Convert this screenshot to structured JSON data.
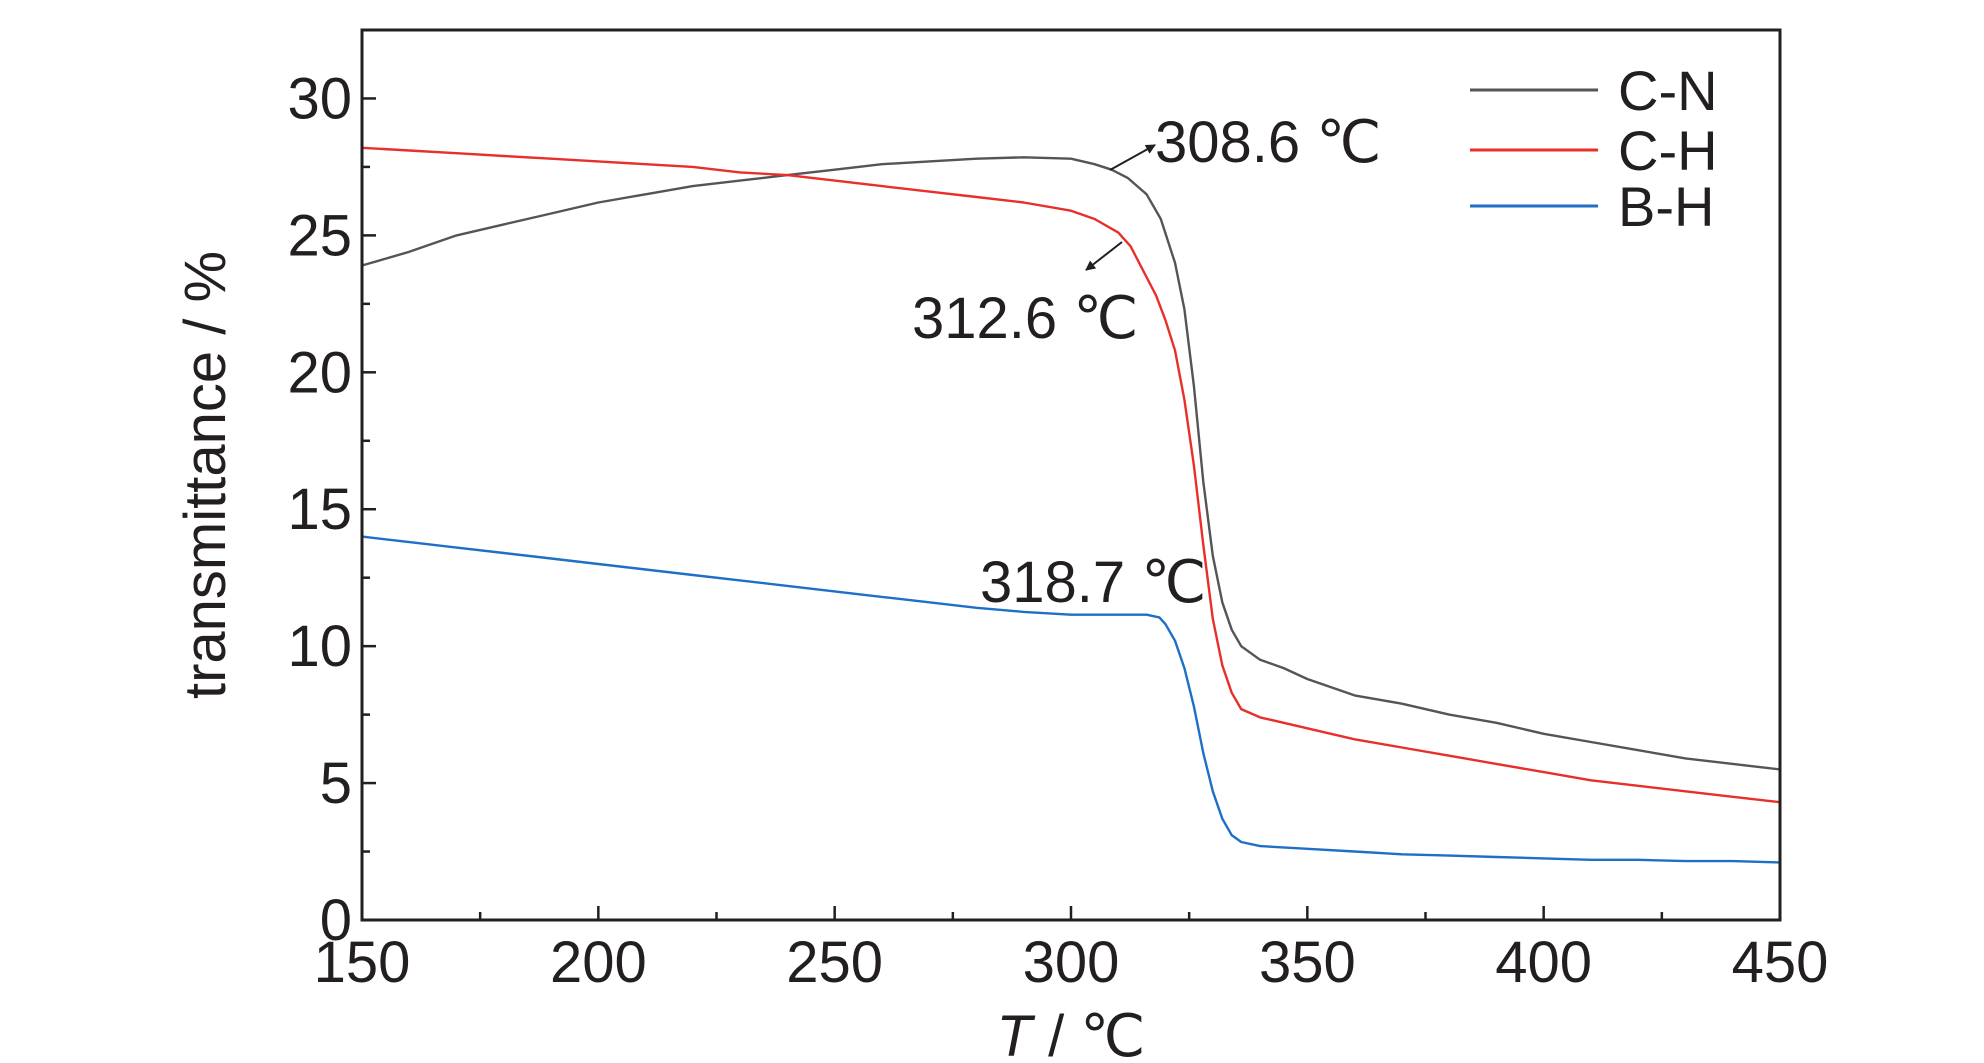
{
  "chart_data": {
    "type": "line",
    "xlabel_italic": "T",
    "xlabel_rest": " / ℃",
    "ylabel": "transmittance / %",
    "xlim": [
      150,
      450
    ],
    "ylim": [
      0,
      32.5
    ],
    "xticks": [
      150,
      200,
      250,
      300,
      350,
      400,
      450
    ],
    "xtick_labels": [
      "150",
      "200",
      "250",
      "300",
      "350",
      "400",
      "450"
    ],
    "yticks": [
      0,
      5,
      10,
      15,
      20,
      25,
      30
    ],
    "ytick_labels": [
      "0",
      "5",
      "10",
      "15",
      "20",
      "25",
      "30"
    ],
    "grid": false,
    "legend_position": "top-right",
    "series": [
      {
        "name": "C-N",
        "color": "#555555",
        "points": [
          [
            150,
            23.9
          ],
          [
            160,
            24.4
          ],
          [
            170,
            25.0
          ],
          [
            180,
            25.4
          ],
          [
            190,
            25.8
          ],
          [
            200,
            26.2
          ],
          [
            210,
            26.5
          ],
          [
            220,
            26.8
          ],
          [
            230,
            27.0
          ],
          [
            240,
            27.2
          ],
          [
            250,
            27.4
          ],
          [
            260,
            27.6
          ],
          [
            270,
            27.7
          ],
          [
            280,
            27.8
          ],
          [
            290,
            27.85
          ],
          [
            300,
            27.8
          ],
          [
            305,
            27.6
          ],
          [
            308.6,
            27.4
          ],
          [
            312,
            27.1
          ],
          [
            316,
            26.5
          ],
          [
            319,
            25.6
          ],
          [
            322,
            24.0
          ],
          [
            324,
            22.3
          ],
          [
            326,
            19.5
          ],
          [
            328,
            16.0
          ],
          [
            330,
            13.3
          ],
          [
            332,
            11.6
          ],
          [
            334,
            10.6
          ],
          [
            336,
            10.0
          ],
          [
            340,
            9.5
          ],
          [
            345,
            9.2
          ],
          [
            350,
            8.8
          ],
          [
            360,
            8.2
          ],
          [
            370,
            7.9
          ],
          [
            380,
            7.5
          ],
          [
            390,
            7.2
          ],
          [
            400,
            6.8
          ],
          [
            410,
            6.5
          ],
          [
            420,
            6.2
          ],
          [
            430,
            5.9
          ],
          [
            440,
            5.7
          ],
          [
            450,
            5.5
          ]
        ]
      },
      {
        "name": "C-H",
        "color": "#e8302a",
        "points": [
          [
            150,
            28.2
          ],
          [
            160,
            28.1
          ],
          [
            170,
            28.0
          ],
          [
            180,
            27.9
          ],
          [
            190,
            27.8
          ],
          [
            200,
            27.7
          ],
          [
            210,
            27.6
          ],
          [
            220,
            27.5
          ],
          [
            230,
            27.3
          ],
          [
            240,
            27.2
          ],
          [
            250,
            27.0
          ],
          [
            260,
            26.8
          ],
          [
            270,
            26.6
          ],
          [
            280,
            26.4
          ],
          [
            290,
            26.2
          ],
          [
            300,
            25.9
          ],
          [
            305,
            25.6
          ],
          [
            310,
            25.1
          ],
          [
            312.6,
            24.6
          ],
          [
            315,
            23.8
          ],
          [
            318,
            22.8
          ],
          [
            320,
            21.9
          ],
          [
            322,
            20.8
          ],
          [
            324,
            19.0
          ],
          [
            326,
            16.6
          ],
          [
            328,
            13.7
          ],
          [
            330,
            11.0
          ],
          [
            332,
            9.3
          ],
          [
            334,
            8.3
          ],
          [
            336,
            7.7
          ],
          [
            340,
            7.4
          ],
          [
            345,
            7.2
          ],
          [
            350,
            7.0
          ],
          [
            360,
            6.6
          ],
          [
            370,
            6.3
          ],
          [
            380,
            6.0
          ],
          [
            390,
            5.7
          ],
          [
            400,
            5.4
          ],
          [
            410,
            5.1
          ],
          [
            420,
            4.9
          ],
          [
            430,
            4.7
          ],
          [
            440,
            4.5
          ],
          [
            450,
            4.3
          ]
        ]
      },
      {
        "name": "B-H",
        "color": "#1f6fc6",
        "points": [
          [
            150,
            14.0
          ],
          [
            160,
            13.8
          ],
          [
            170,
            13.6
          ],
          [
            180,
            13.4
          ],
          [
            190,
            13.2
          ],
          [
            200,
            13.0
          ],
          [
            210,
            12.8
          ],
          [
            220,
            12.6
          ],
          [
            230,
            12.4
          ],
          [
            240,
            12.2
          ],
          [
            250,
            12.0
          ],
          [
            260,
            11.8
          ],
          [
            270,
            11.6
          ],
          [
            280,
            11.4
          ],
          [
            290,
            11.25
          ],
          [
            300,
            11.15
          ],
          [
            310,
            11.15
          ],
          [
            316,
            11.15
          ],
          [
            318.7,
            11.05
          ],
          [
            320,
            10.8
          ],
          [
            322,
            10.2
          ],
          [
            324,
            9.2
          ],
          [
            326,
            7.8
          ],
          [
            328,
            6.1
          ],
          [
            330,
            4.7
          ],
          [
            332,
            3.7
          ],
          [
            334,
            3.1
          ],
          [
            336,
            2.85
          ],
          [
            340,
            2.7
          ],
          [
            350,
            2.6
          ],
          [
            360,
            2.5
          ],
          [
            370,
            2.4
          ],
          [
            380,
            2.35
          ],
          [
            390,
            2.3
          ],
          [
            400,
            2.25
          ],
          [
            410,
            2.2
          ],
          [
            420,
            2.2
          ],
          [
            430,
            2.15
          ],
          [
            440,
            2.15
          ],
          [
            450,
            2.1
          ]
        ]
      }
    ],
    "annotations": [
      {
        "text": "308.6 ℃",
        "series": "C-N"
      },
      {
        "text": "312.6 ℃",
        "series": "C-H"
      },
      {
        "text": "318.7 ℃",
        "series": "B-H"
      }
    ]
  }
}
